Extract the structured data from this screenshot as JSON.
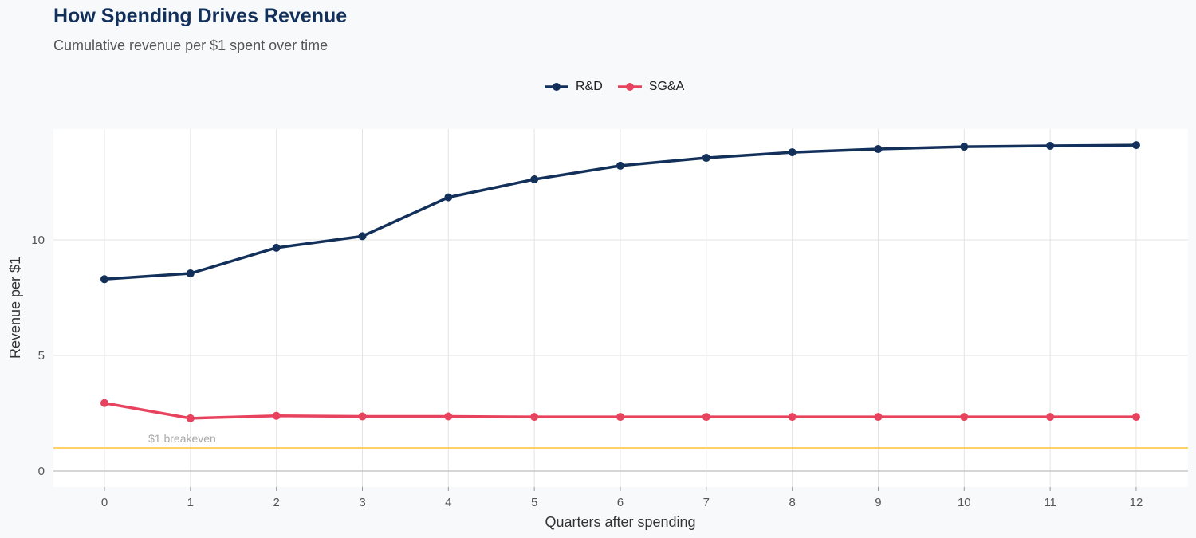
{
  "chart_data": {
    "type": "line",
    "title": "How Spending Drives Revenue",
    "subtitle": "Cumulative revenue per $1 spent over time",
    "xlabel": "Quarters after spending",
    "ylabel": "Revenue per $1",
    "x": [
      0,
      1,
      2,
      3,
      4,
      5,
      6,
      7,
      8,
      9,
      10,
      11,
      12
    ],
    "xlim": [
      -0.6,
      12.6
    ],
    "ylim": [
      -0.7,
      14.8
    ],
    "yticks": [
      0,
      5,
      10
    ],
    "grid": true,
    "legend_position": "top",
    "series": [
      {
        "name": "R&D",
        "color": "#12305a",
        "values": [
          8.3,
          8.55,
          9.66,
          10.16,
          11.84,
          12.62,
          13.21,
          13.55,
          13.79,
          13.93,
          14.03,
          14.07,
          14.1
        ]
      },
      {
        "name": "SG&A",
        "color": "#e8435e",
        "values": [
          2.94,
          2.28,
          2.39,
          2.36,
          2.36,
          2.34,
          2.34,
          2.34,
          2.34,
          2.34,
          2.34,
          2.34,
          2.34
        ]
      }
    ],
    "reference_line": {
      "y": 1,
      "label": "$1 breakeven",
      "color": "#ffd166"
    }
  }
}
